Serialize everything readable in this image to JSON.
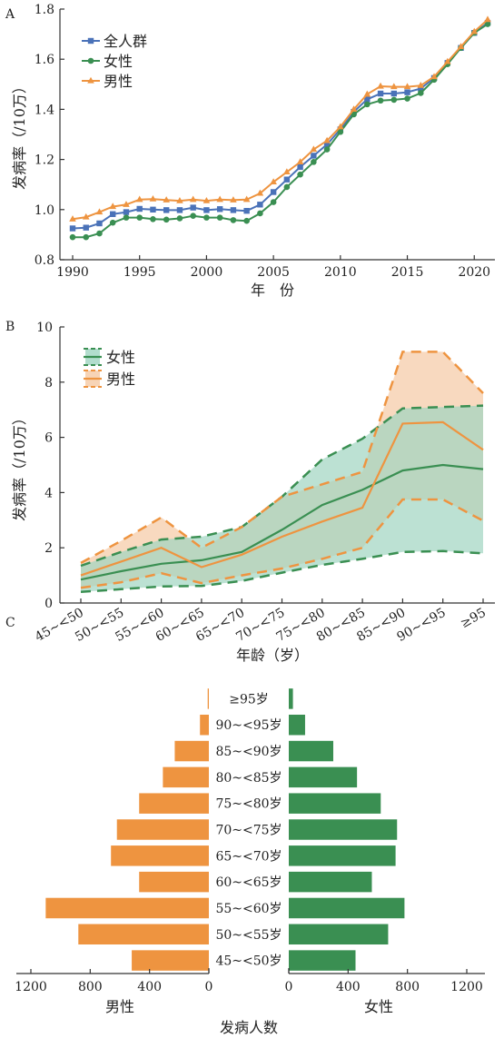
{
  "chart_data": [
    {
      "panel": "A",
      "type": "line",
      "xlabel": "年　份",
      "ylabel": "发病率（/10万）",
      "xlim": [
        1990,
        2021
      ],
      "ylim": [
        0.8,
        1.8
      ],
      "xticks": [
        1990,
        1995,
        2000,
        2005,
        2010,
        2015,
        2020
      ],
      "yticks": [
        0.8,
        1.0,
        1.2,
        1.4,
        1.6,
        1.8
      ],
      "ytick_labels": [
        "0.8",
        "1.0",
        "1.2",
        "1.4",
        "1.6",
        "1.8"
      ],
      "x": [
        1990,
        1991,
        1992,
        1993,
        1994,
        1995,
        1996,
        1997,
        1998,
        1999,
        2000,
        2001,
        2002,
        2003,
        2004,
        2005,
        2006,
        2007,
        2008,
        2009,
        2010,
        2011,
        2012,
        2013,
        2014,
        2015,
        2016,
        2017,
        2018,
        2019,
        2020,
        2021
      ],
      "legend_position": "top-left",
      "series": [
        {
          "name": "全人群",
          "color": "#4a72b8",
          "marker": "square",
          "values": [
            0.925,
            0.928,
            0.945,
            0.982,
            0.99,
            1.003,
            1.0,
            0.998,
            0.998,
            1.008,
            0.998,
            1.002,
            0.998,
            0.995,
            1.02,
            1.07,
            1.12,
            1.17,
            1.215,
            1.26,
            1.32,
            1.39,
            1.44,
            1.463,
            1.463,
            1.468,
            1.483,
            1.525,
            1.585,
            1.645,
            1.705,
            1.745
          ]
        },
        {
          "name": "女性",
          "color": "#3a8f52",
          "marker": "circle",
          "values": [
            0.89,
            0.89,
            0.905,
            0.948,
            0.968,
            0.968,
            0.962,
            0.96,
            0.965,
            0.975,
            0.968,
            0.968,
            0.958,
            0.955,
            0.985,
            1.03,
            1.09,
            1.14,
            1.19,
            1.24,
            1.31,
            1.38,
            1.42,
            1.435,
            1.438,
            1.443,
            1.465,
            1.518,
            1.58,
            1.645,
            1.705,
            1.74
          ]
        },
        {
          "name": "男性",
          "color": "#ee9440",
          "marker": "triangle",
          "values": [
            0.962,
            0.97,
            0.99,
            1.012,
            1.02,
            1.04,
            1.042,
            1.038,
            1.035,
            1.04,
            1.035,
            1.04,
            1.038,
            1.04,
            1.065,
            1.11,
            1.15,
            1.19,
            1.24,
            1.275,
            1.33,
            1.4,
            1.46,
            1.492,
            1.49,
            1.49,
            1.495,
            1.53,
            1.59,
            1.65,
            1.71,
            1.758
          ]
        }
      ]
    },
    {
      "panel": "B",
      "type": "area",
      "xlabel": "年龄（岁）",
      "ylabel": "发病率（/10万）",
      "ylim": [
        0,
        10
      ],
      "yticks": [
        0,
        2,
        4,
        6,
        8,
        10
      ],
      "categories": [
        "45~<50",
        "50~<55",
        "55~<60",
        "60~<65",
        "65~<70",
        "70~<75",
        "75~<80",
        "80~<85",
        "85~<90",
        "90~<95",
        "≥95"
      ],
      "legend_position": "top-left",
      "series": [
        {
          "name": "女性",
          "color": "#3a8f52",
          "fill": "#9fd4c0",
          "values": [
            0.85,
            1.15,
            1.42,
            1.55,
            1.85,
            2.65,
            3.55,
            4.1,
            4.8,
            5.0,
            4.85
          ],
          "upper": [
            1.35,
            1.85,
            2.3,
            2.4,
            2.75,
            3.85,
            5.2,
            5.95,
            7.05,
            7.1,
            7.15
          ],
          "lower": [
            0.4,
            0.5,
            0.6,
            0.62,
            0.8,
            1.1,
            1.38,
            1.6,
            1.85,
            1.88,
            1.8
          ]
        },
        {
          "name": "男性",
          "color": "#ee9440",
          "fill": "#f5c9a4",
          "values": [
            1.0,
            1.5,
            2.0,
            1.3,
            1.75,
            2.4,
            2.95,
            3.45,
            6.5,
            6.55,
            5.55
          ],
          "upper": [
            1.45,
            2.25,
            3.1,
            2.0,
            2.75,
            3.85,
            4.3,
            4.75,
            9.1,
            9.1,
            7.6
          ],
          "lower": [
            0.55,
            0.75,
            1.08,
            0.72,
            1.0,
            1.25,
            1.6,
            2.0,
            3.75,
            3.75,
            2.98
          ]
        }
      ]
    },
    {
      "panel": "C",
      "type": "bar",
      "orientation": "horizontal",
      "xlabel": "发病人数",
      "ylabel": "",
      "categories": [
        "45~<50岁",
        "50~<55岁",
        "55~<60岁",
        "60~<65岁",
        "65~<70岁",
        "70~<75岁",
        "75~<80岁",
        "80~<85岁",
        "85~<90岁",
        "90~<95岁",
        "≥95岁"
      ],
      "left_xticks": [
        1200,
        800,
        400,
        0
      ],
      "right_xticks": [
        0,
        400,
        800,
        1200
      ],
      "left_xlim": [
        0,
        1200
      ],
      "right_xlim": [
        0,
        1200
      ],
      "series": [
        {
          "name": "男性",
          "side": "left",
          "color": "#ee9440",
          "values": [
            520,
            880,
            1100,
            470,
            660,
            620,
            470,
            310,
            230,
            60,
            8
          ]
        },
        {
          "name": "女性",
          "side": "right",
          "color": "#3a8f52",
          "values": [
            450,
            670,
            780,
            560,
            720,
            730,
            620,
            460,
            300,
            110,
            28
          ]
        }
      ]
    }
  ]
}
